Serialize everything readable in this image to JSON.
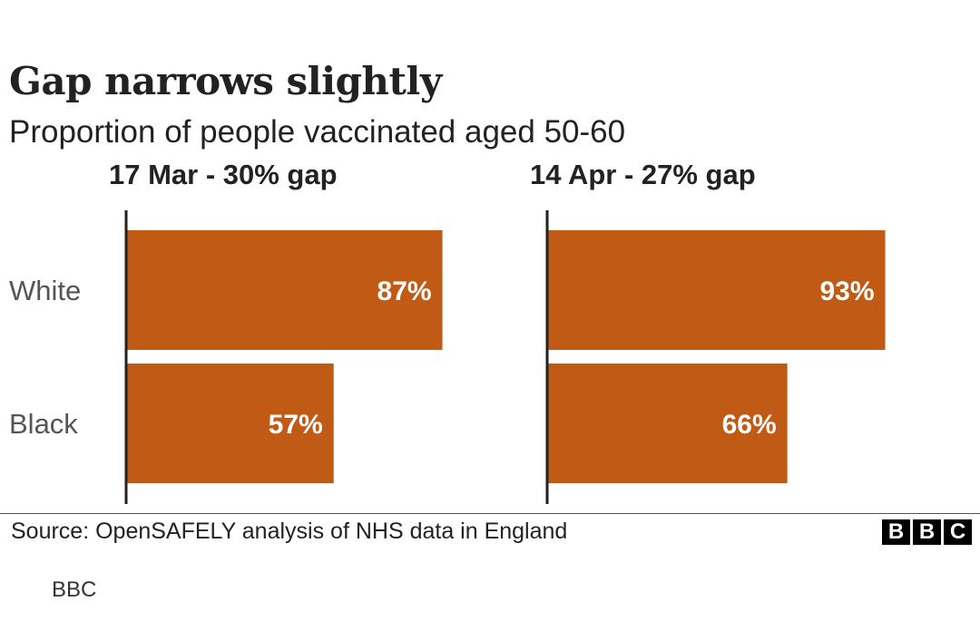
{
  "title": "Gap narrows slightly",
  "subtitle": "Proportion of people vaccinated aged 50-60",
  "chart_data": [
    {
      "type": "bar",
      "orientation": "horizontal",
      "title": "17 Mar - 30% gap",
      "categories": [
        "White",
        "Black"
      ],
      "values": [
        87,
        57
      ],
      "value_labels": [
        "87%",
        "57%"
      ],
      "xlim": [
        0,
        100
      ],
      "xlabel": "",
      "ylabel": "",
      "grid": false,
      "bar_color": "#c05a15"
    },
    {
      "type": "bar",
      "orientation": "horizontal",
      "title": "14 Apr - 27% gap",
      "categories": [
        "White",
        "Black"
      ],
      "values": [
        93,
        66
      ],
      "value_labels": [
        "93%",
        "66%"
      ],
      "xlim": [
        0,
        100
      ],
      "xlabel": "",
      "ylabel": "",
      "grid": false,
      "bar_color": "#c05a15"
    }
  ],
  "footer": {
    "source": "Source: OpenSAFELY analysis of NHS data in England",
    "logo_letters": [
      "B",
      "B",
      "C"
    ]
  },
  "credit": "BBC",
  "colors": {
    "bar": "#c05a15",
    "text": "#222222",
    "axis": "#222222",
    "category_text": "#555555"
  }
}
